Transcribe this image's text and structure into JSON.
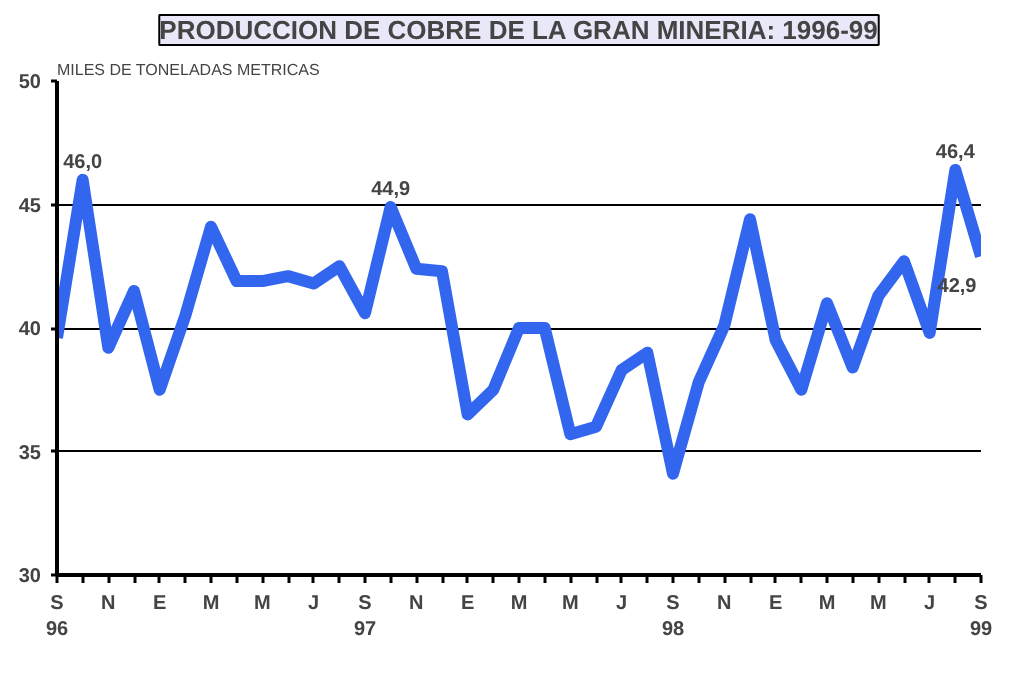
{
  "chart_data": {
    "type": "line",
    "title": "PRODUCCION DE COBRE DE LA GRAN MINERIA: 1996-99",
    "ylabel": "MILES DE TONELADAS METRICAS",
    "categories": [
      "S\n96",
      null,
      "N",
      null,
      "E",
      null,
      "M",
      null,
      "M",
      null,
      "J",
      null,
      "S\n97",
      null,
      "N",
      null,
      "E",
      null,
      "M",
      null,
      "M",
      null,
      "J",
      null,
      "S\n98",
      null,
      "N",
      null,
      "E",
      null,
      "M",
      null,
      "M",
      null,
      "J",
      null,
      "S\n99"
    ],
    "series": [
      {
        "color": "#3366ee",
        "values": [
          39.6,
          46.0,
          39.2,
          41.5,
          37.5,
          40.5,
          44.1,
          41.9,
          41.9,
          42.1,
          41.8,
          42.5,
          40.6,
          44.9,
          42.4,
          42.3,
          36.5,
          37.5,
          40.0,
          40.0,
          35.7,
          36.0,
          38.3,
          39.0,
          34.1,
          37.8,
          40.1,
          44.4,
          39.5,
          37.5,
          41.0,
          38.4,
          41.3,
          42.7,
          39.8,
          46.4,
          42.9
        ],
        "value_labels": [
          null,
          "46,0",
          null,
          null,
          null,
          null,
          null,
          null,
          null,
          null,
          null,
          null,
          null,
          "44,9",
          null,
          null,
          null,
          null,
          null,
          null,
          null,
          null,
          null,
          null,
          null,
          null,
          null,
          null,
          null,
          null,
          null,
          null,
          null,
          null,
          null,
          "46,4",
          "42,9"
        ]
      }
    ],
    "ylim": [
      30,
      50
    ],
    "yticks": [
      30,
      35,
      40,
      45,
      50
    ],
    "grid": "y"
  }
}
